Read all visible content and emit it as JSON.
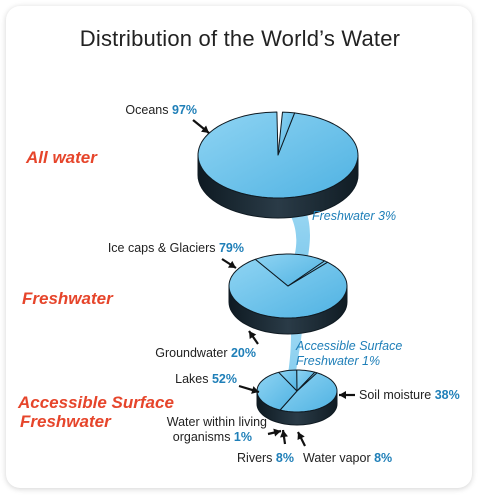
{
  "title": "Distribution of the World’s Water",
  "sections": {
    "all_water": "All water",
    "freshwater": "Freshwater",
    "accessible_line1": "Accessible Surface",
    "accessible_line2": "Freshwater"
  },
  "colors": {
    "pie_fill": "#6dc3eb",
    "pie_side": "#1f2d38",
    "pie_edge": "#0f1a22",
    "label_text": "#222222",
    "value_text": "#1f7fb8",
    "section_text": "#e6452b",
    "flow_label": "#1f7fb8",
    "water_stream": "#7ccdf0"
  },
  "chart_data": {
    "type": "pie",
    "title": "Distribution of the World’s Water",
    "pies": [
      {
        "section": "All water",
        "slices": [
          {
            "label": "Oceans",
            "value": 97,
            "display": "97%"
          },
          {
            "label": "Freshwater",
            "value": 3,
            "display": "3%"
          }
        ]
      },
      {
        "section": "Freshwater",
        "slices": [
          {
            "label": "Ice caps & Glaciers",
            "value": 79,
            "display": "79%"
          },
          {
            "label": "Groundwater",
            "value": 20,
            "display": "20%"
          },
          {
            "label": "Accessible Surface Freshwater",
            "value": 1,
            "display": "1%"
          }
        ]
      },
      {
        "section": "Accessible Surface Freshwater",
        "slices": [
          {
            "label": "Lakes",
            "value": 52,
            "display": "52%"
          },
          {
            "label": "Soil moisture",
            "value": 38,
            "display": "38%"
          },
          {
            "label": "Water vapor",
            "value": 8,
            "display": "8%"
          },
          {
            "label": "Rivers",
            "value": 8,
            "display": "8%"
          },
          {
            "label": "Water within living organisms",
            "value": 1,
            "display": "1%"
          }
        ]
      }
    ],
    "annotations": {
      "oceans": {
        "name": "Oceans",
        "value": "97%"
      },
      "freshwater_flow": "Freshwater 3%",
      "icecaps": {
        "name": "Ice caps & Glaciers",
        "value": "79%"
      },
      "groundwater": {
        "name": "Groundwater",
        "value": "20%"
      },
      "accessible_flow_1": "Accessible Surface",
      "accessible_flow_2": "Freshwater 1%",
      "lakes": {
        "name": "Lakes",
        "value": "52%"
      },
      "soil": {
        "name": "Soil moisture",
        "value": "38%"
      },
      "organisms_1": "Water within living",
      "organisms_2": {
        "name": "organisms",
        "value": "1%"
      },
      "rivers": {
        "name": "Rivers",
        "value": "8%"
      },
      "vapor": {
        "name": "Water vapor",
        "value": "8%"
      }
    }
  }
}
